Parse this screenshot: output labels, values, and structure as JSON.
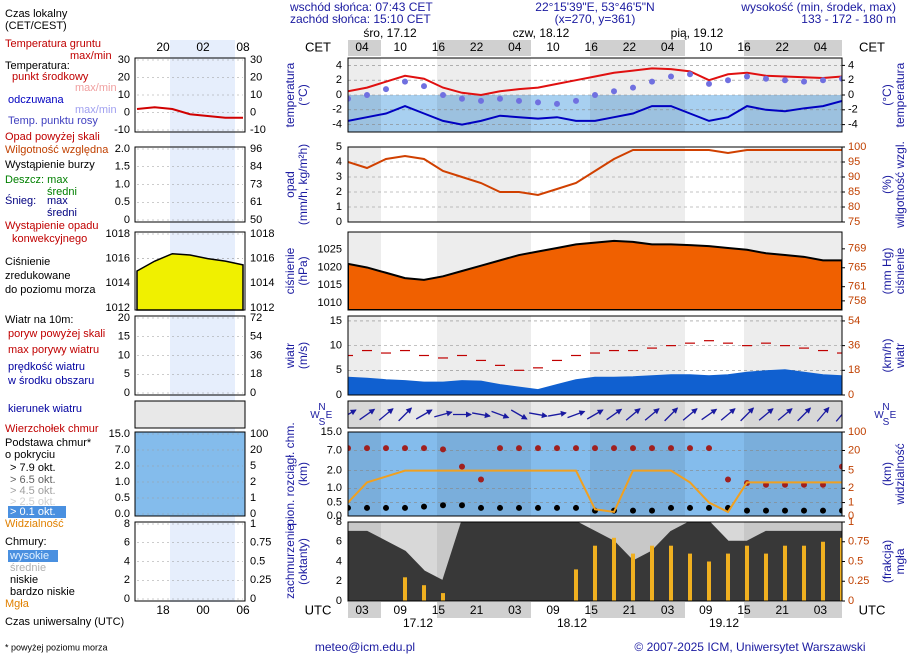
{
  "header": {
    "sunrise": "wschód słońca: 07:43 CET",
    "sunset": "zachód słońca: 15:10 CET",
    "coords": "22°15'39\"E, 53°46'5\"N",
    "grid_point": "(x=270, y=361)",
    "elevation_title": "wysokość (min, środek, max)",
    "elevation": "133 - 172 - 180 m"
  },
  "legend": [
    {
      "text": "Czas lokalny",
      "color": "#000000"
    },
    {
      "text": "(CET/CEST)",
      "color": "#000000"
    },
    {
      "text": "Temperatura gruntu",
      "color": "#c00000"
    },
    {
      "text": "max/min",
      "color": "#c00000"
    },
    {
      "text": "Temperatura:",
      "color": "#000000"
    },
    {
      "text": "punkt środkowy",
      "color": "#c00000"
    },
    {
      "text": "max/min",
      "color": "#f0a0a0"
    },
    {
      "text": "odczuwana",
      "color": "#0000c0"
    },
    {
      "text": "max/min",
      "color": "#a0a0f0"
    },
    {
      "text": "Temp. punktu rosy",
      "color": "#4040c0"
    },
    {
      "text": "Opad powyżej skali",
      "color": "#c00000"
    },
    {
      "text": "Wilgotność względna",
      "color": "#c04000"
    },
    {
      "text": "Wystąpienie burzy",
      "color": "#000000"
    },
    {
      "text": "Deszcz: max",
      "color": "#008000"
    },
    {
      "text": "średni",
      "color": "#008000"
    },
    {
      "text": "Śnieg:",
      "color": "#000080"
    },
    {
      "text": "max",
      "color": "#000080"
    },
    {
      "text": "średni",
      "color": "#000080"
    },
    {
      "text": "Wystąpienie opadu",
      "color": "#c00000"
    },
    {
      "text": "konwekcyjnego",
      "color": "#c00000"
    },
    {
      "text": "Ciśnienie",
      "color": "#000000"
    },
    {
      "text": "zredukowane",
      "color": "#000000"
    },
    {
      "text": "do poziomu morza",
      "color": "#000000"
    },
    {
      "text": "Wiatr na 10m:",
      "color": "#000000"
    },
    {
      "text": "poryw powyżej skali",
      "color": "#c00000"
    },
    {
      "text": "max porywy wiatru",
      "color": "#c00000"
    },
    {
      "text": "prędkość wiatru",
      "color": "#0000a0"
    },
    {
      "text": "w środku obszaru",
      "color": "#0000a0"
    },
    {
      "text": "kierunek wiatru",
      "color": "#0000a0"
    },
    {
      "text": "Wierzchołek chmur",
      "color": "#c00000"
    },
    {
      "text": "Podstawa chmur*",
      "color": "#000000"
    },
    {
      "text": "o pokryciu",
      "color": "#000000"
    },
    {
      "text": "> 7.9 okt.",
      "color": "#000000"
    },
    {
      "text": "> 6.5 okt.",
      "color": "#606060"
    },
    {
      "text": "> 4.5 okt.",
      "color": "#a0a0a0"
    },
    {
      "text": "> 2.5 okt.",
      "color": "#d0d0d0"
    },
    {
      "text": "> 0.1 okt.",
      "color": "#ffffff"
    },
    {
      "text": "Widzialność",
      "color": "#e08000"
    },
    {
      "text": "Chmury:",
      "color": "#000000"
    },
    {
      "text": "wysokie",
      "color": "#e0f0ff"
    },
    {
      "text": "średnie",
      "color": "#b0b0b0"
    },
    {
      "text": "niskie",
      "color": "#000000"
    },
    {
      "text": "bardzo niskie",
      "color": "#000000"
    },
    {
      "text": "Mgła",
      "color": "#e08000"
    },
    {
      "text": "Czas uniwersalny (UTC)",
      "color": "#000000"
    }
  ],
  "mini": {
    "top_hours": [
      "20",
      "02",
      "08"
    ],
    "bottom_hours": [
      "18",
      "00",
      "06"
    ],
    "panels": [
      {
        "yticks": [
          30,
          20,
          10,
          0,
          -10
        ],
        "y2ticks": [
          30,
          20,
          10,
          0,
          -10
        ]
      },
      {
        "yticks": [
          {
            "value": 2,
            "label": "2.0"
          },
          1.5,
          {
            "value": 1,
            "label": "1.0"
          },
          0.5,
          0
        ],
        "y2ticks": [
          96,
          84,
          73,
          61,
          50
        ]
      },
      {
        "yticks": [
          1018,
          1016,
          1014,
          1012
        ],
        "y2ticks": [
          1018,
          1016,
          1014,
          1012
        ]
      },
      {
        "yticks": [
          20,
          15,
          10,
          5,
          0
        ],
        "y2ticks": [
          72,
          54,
          36,
          18,
          0
        ]
      },
      null,
      {
        "yticks": [
          {
            "value": 15,
            "label": "15.0"
          },
          {
            "value": 7,
            "label": "7.0"
          },
          {
            "value": 2,
            "label": "2.0"
          },
          {
            "value": 1,
            "label": "1.0"
          },
          0.5,
          {
            "value": 0,
            "label": "0.0"
          }
        ],
        "y2ticks": [
          100,
          20,
          5,
          2,
          1,
          0
        ]
      },
      {
        "yticks": [
          8,
          6,
          4,
          2,
          0
        ],
        "y2ticks": [
          1,
          0.75,
          0.5,
          0.25,
          0
        ]
      }
    ],
    "temperature": {
      "ylim": [
        -10,
        30
      ],
      "color": "#d00000",
      "values": [
        2,
        3,
        2,
        -1,
        -2,
        -3,
        -3
      ]
    },
    "pressure": {
      "ylim": [
        1012,
        1018
      ],
      "color": "#f0f000",
      "values": [
        1015,
        1015.8,
        1016.4,
        1016.3,
        1016,
        1015.8,
        1015.5
      ]
    }
  },
  "timeline": {
    "cet_label": "CET",
    "utc_label": "UTC",
    "cet_hours": [
      "04",
      "10",
      "16",
      "22",
      "04",
      "10",
      "16",
      "22",
      "04",
      "10",
      "16",
      "22",
      "04"
    ],
    "utc_hours": [
      "03",
      "09",
      "15",
      "21",
      "03",
      "09",
      "15",
      "21",
      "03",
      "09",
      "15",
      "21",
      "03"
    ],
    "days": [
      "śro, 17.12",
      "czw, 18.12",
      "pią, 19.12"
    ],
    "dates": [
      "17.12",
      "18.12",
      "19.12"
    ]
  },
  "chart_data": [
    {
      "type": "line",
      "ylabel": [
        "temperatura",
        "(°C)"
      ],
      "y2label": [
        "(°C)",
        "temperatura"
      ],
      "ylim": [
        -5,
        5
      ],
      "yticks": [
        4,
        2,
        0,
        -2,
        -4
      ],
      "y2lim": [
        -5,
        5
      ],
      "y2ticks": [
        4,
        2,
        0,
        -2,
        -4
      ],
      "grid": true,
      "background": "#ffffff",
      "series": [
        {
          "name": "punkt środkowy",
          "color": "#e01010",
          "kind": "line",
          "values": [
            0.5,
            1,
            1.8,
            2.6,
            2.2,
            1,
            0.3,
            0,
            0.5,
            0.8,
            1,
            1.5,
            2,
            2.5,
            3,
            3.3,
            3.6,
            3.5,
            3.2,
            2,
            2.8,
            3,
            2.6,
            2.5,
            2.4,
            2.3,
            2.5
          ]
        },
        {
          "name": "Temp. punktu rosy",
          "color": "#7070e0",
          "kind": "dots",
          "values": [
            -0.5,
            0,
            0.8,
            1.8,
            1.2,
            0,
            -0.5,
            -0.8,
            -0.5,
            -0.8,
            -1,
            -1.2,
            -0.8,
            0,
            0.5,
            1,
            1.8,
            2.5,
            2.8,
            1.5,
            2,
            2.5,
            2.2,
            2,
            1.8,
            2,
            2.2
          ]
        },
        {
          "name": "odczuwana",
          "color": "#0000c0",
          "kind": "line",
          "values": [
            -3.5,
            -3,
            -2.5,
            -1.5,
            -2.5,
            -3.5,
            -4,
            -3.5,
            -2.8,
            -3,
            -3.2,
            -3,
            -3.5,
            -3.5,
            -3,
            -2.5,
            -1.5,
            -1.5,
            -2.5,
            -3.5,
            -3,
            -1.5,
            -2,
            -2.2,
            -1.8,
            -1.5,
            -0.8
          ]
        }
      ]
    },
    {
      "type": "line",
      "ylabel": [
        "opad",
        "(mm/h, kg/m²h)"
      ],
      "y2label": [
        "(%)",
        "wilgotność wzgl."
      ],
      "ylim": [
        0,
        5
      ],
      "yticks": [
        5,
        4,
        3,
        2,
        1,
        0
      ],
      "y2lim": [
        75,
        100
      ],
      "y2ticks": [
        100,
        95,
        90,
        85,
        80,
        75
      ],
      "grid": true,
      "background": "#ffffff",
      "series": [
        {
          "name": "Wilgotność względna",
          "color": "#d04000",
          "kind": "line",
          "axis": "y2",
          "values": [
            95,
            93,
            96,
            97,
            96,
            92,
            90,
            88,
            85,
            85,
            84,
            86,
            88,
            92,
            96,
            99,
            99,
            99,
            99,
            99,
            98,
            99,
            99,
            99,
            99,
            99,
            99
          ]
        }
      ]
    },
    {
      "type": "area",
      "ylabel": [
        "ciśnienie",
        "(hPa)"
      ],
      "y2label": [
        "(mm Hg)",
        "ciśnienie"
      ],
      "ylim": [
        1008,
        1030
      ],
      "yticks": [
        1025,
        1020,
        1015,
        1010
      ],
      "y2lim": [
        756.07,
        772.56
      ],
      "y2ticks": [
        769,
        765,
        761,
        758
      ],
      "grid": false,
      "background": "#ffffff",
      "series": [
        {
          "name": "Ciśnienie",
          "color": "#f06000",
          "kind": "area",
          "values": [
            1021,
            1020,
            1018.5,
            1017,
            1016.5,
            1017.5,
            1019,
            1020.5,
            1022,
            1023.5,
            1024.5,
            1025.5,
            1026.5,
            1027,
            1027.5,
            1027.2,
            1026.5,
            1026.5,
            1026.3,
            1026,
            1025.5,
            1025,
            1024,
            1023.5,
            1023,
            1022,
            1022
          ]
        }
      ]
    },
    {
      "type": "area",
      "ylabel": [
        "wiatr",
        "(m/s)"
      ],
      "y2label": [
        "(km/h)",
        "wiatr"
      ],
      "ylim": [
        0,
        16
      ],
      "yticks": [
        15,
        10,
        5,
        0
      ],
      "y2lim": [
        0,
        57.6
      ],
      "y2ticks": [
        54,
        36,
        18,
        0
      ],
      "grid": true,
      "background": "#ffffff",
      "series": [
        {
          "name": "prędkość wiatru",
          "color": "#1060d0",
          "kind": "area",
          "values": [
            3.5,
            3.3,
            3,
            2.8,
            2.5,
            2.5,
            2.8,
            2.7,
            2,
            1.5,
            1,
            2,
            3,
            3.5,
            3.5,
            3.6,
            3.8,
            4,
            4,
            3.8,
            4,
            4.5,
            4.8,
            5,
            4.5,
            4,
            3.8
          ]
        },
        {
          "name": "max porywy wiatru",
          "color": "#c00000",
          "kind": "dashes",
          "values": [
            8,
            9,
            8.5,
            9,
            8,
            7.5,
            8,
            7,
            6,
            5,
            5.5,
            7,
            8,
            8.5,
            9,
            9,
            9.5,
            10,
            10.5,
            11,
            10.5,
            10,
            10.5,
            10,
            9.5,
            9,
            8.5
          ]
        }
      ]
    },
    {
      "type": "arrows",
      "compass": [
        "N",
        "W",
        "E",
        "S"
      ],
      "background": "#e8e8e8",
      "series": [
        {
          "name": "kierunek wiatru",
          "color": "#1a1aa0",
          "kind": "arrows",
          "values": [
            60,
            55,
            50,
            45,
            60,
            75,
            90,
            100,
            110,
            120,
            100,
            80,
            70,
            60,
            55,
            50,
            50,
            45,
            50,
            55,
            50,
            45,
            50,
            50,
            45,
            40,
            40
          ]
        }
      ]
    },
    {
      "type": "line",
      "scale": "piecewise",
      "ylabel": [
        "pion. rozciągł. chm.",
        "(km)"
      ],
      "y2label": [
        "(km)",
        "widzialność"
      ],
      "yticks": [
        {
          "value": 15,
          "label": "15.0"
        },
        {
          "value": 7,
          "label": "7.0"
        },
        {
          "value": 2,
          "label": "2.0"
        },
        {
          "value": 1,
          "label": "1.0"
        },
        0.5,
        {
          "value": 0,
          "label": "0.0"
        }
      ],
      "y2ticks": [
        100,
        20,
        5,
        2,
        1,
        0
      ],
      "grid": true,
      "background": "#84bcec",
      "series": [
        {
          "name": "Wierzchołek chmur",
          "color": "#a02020",
          "kind": "dots",
          "values": [
            8,
            8,
            8,
            8,
            8,
            7.5,
            3,
            1.5,
            8,
            8,
            8,
            8,
            8,
            8,
            8,
            8,
            8,
            8,
            8,
            8,
            1.5,
            1.3,
            1.2,
            1.2,
            1.2,
            1.2,
            3
          ]
        },
        {
          "name": "Podstawa chmur*",
          "color": "#000000",
          "kind": "dots",
          "values": [
            0.3,
            0.3,
            0.3,
            0.3,
            0.35,
            0.4,
            0.4,
            0.3,
            0.3,
            0.3,
            0.3,
            0.3,
            0.3,
            0.2,
            0.2,
            0.2,
            0.2,
            0.3,
            0.3,
            0.3,
            0.3,
            0.2,
            0.2,
            0.2,
            0.2,
            0.2,
            0.2
          ]
        },
        {
          "name": "Widzialność",
          "color": "#f0a020",
          "kind": "line",
          "axis": "y2",
          "values": [
            1,
            3,
            4,
            5,
            5,
            5,
            5,
            5,
            5,
            5,
            5,
            5,
            5,
            0.5,
            0.3,
            5,
            5,
            5,
            3,
            1,
            0.3,
            3,
            3,
            3,
            3,
            3,
            3
          ]
        }
      ]
    },
    {
      "type": "area",
      "ylabel": [
        "zachmurzenie",
        "(oktanty)"
      ],
      "y2label": [
        "(frakcja)",
        "mgła"
      ],
      "ylim": [
        0,
        8
      ],
      "yticks": [
        8,
        6,
        4,
        2,
        0
      ],
      "y2lim": [
        0,
        1
      ],
      "y2ticks": [
        1,
        0.75,
        0.5,
        0.25,
        0
      ],
      "grid": false,
      "background": "#d8d8d8",
      "series": [
        {
          "name": "Chmury",
          "color": "#383838",
          "kind": "area",
          "values": [
            7,
            7,
            6,
            5,
            3,
            2,
            8,
            8,
            8,
            8,
            8,
            8,
            8,
            7,
            6,
            4,
            5,
            7,
            8,
            8,
            6,
            6,
            7,
            7,
            7,
            7,
            7
          ]
        },
        {
          "name": "Mgła",
          "color": "#f0b020",
          "kind": "bars",
          "axis": "y2",
          "values": [
            0,
            0,
            0,
            0.3,
            0.2,
            0.1,
            0,
            0,
            0,
            0,
            0,
            0,
            0.4,
            0.7,
            0.8,
            0.6,
            0.7,
            0.7,
            0.6,
            0.5,
            0.6,
            0.7,
            0.6,
            0.7,
            0.7,
            0.75,
            0.8
          ]
        }
      ]
    }
  ],
  "footer": {
    "contact": "meteo@icm.edu.pl",
    "copyright": "© 2007-2025 ICM, Uniwersytet Warszawski",
    "note": "* powyżej poziomu morza"
  }
}
